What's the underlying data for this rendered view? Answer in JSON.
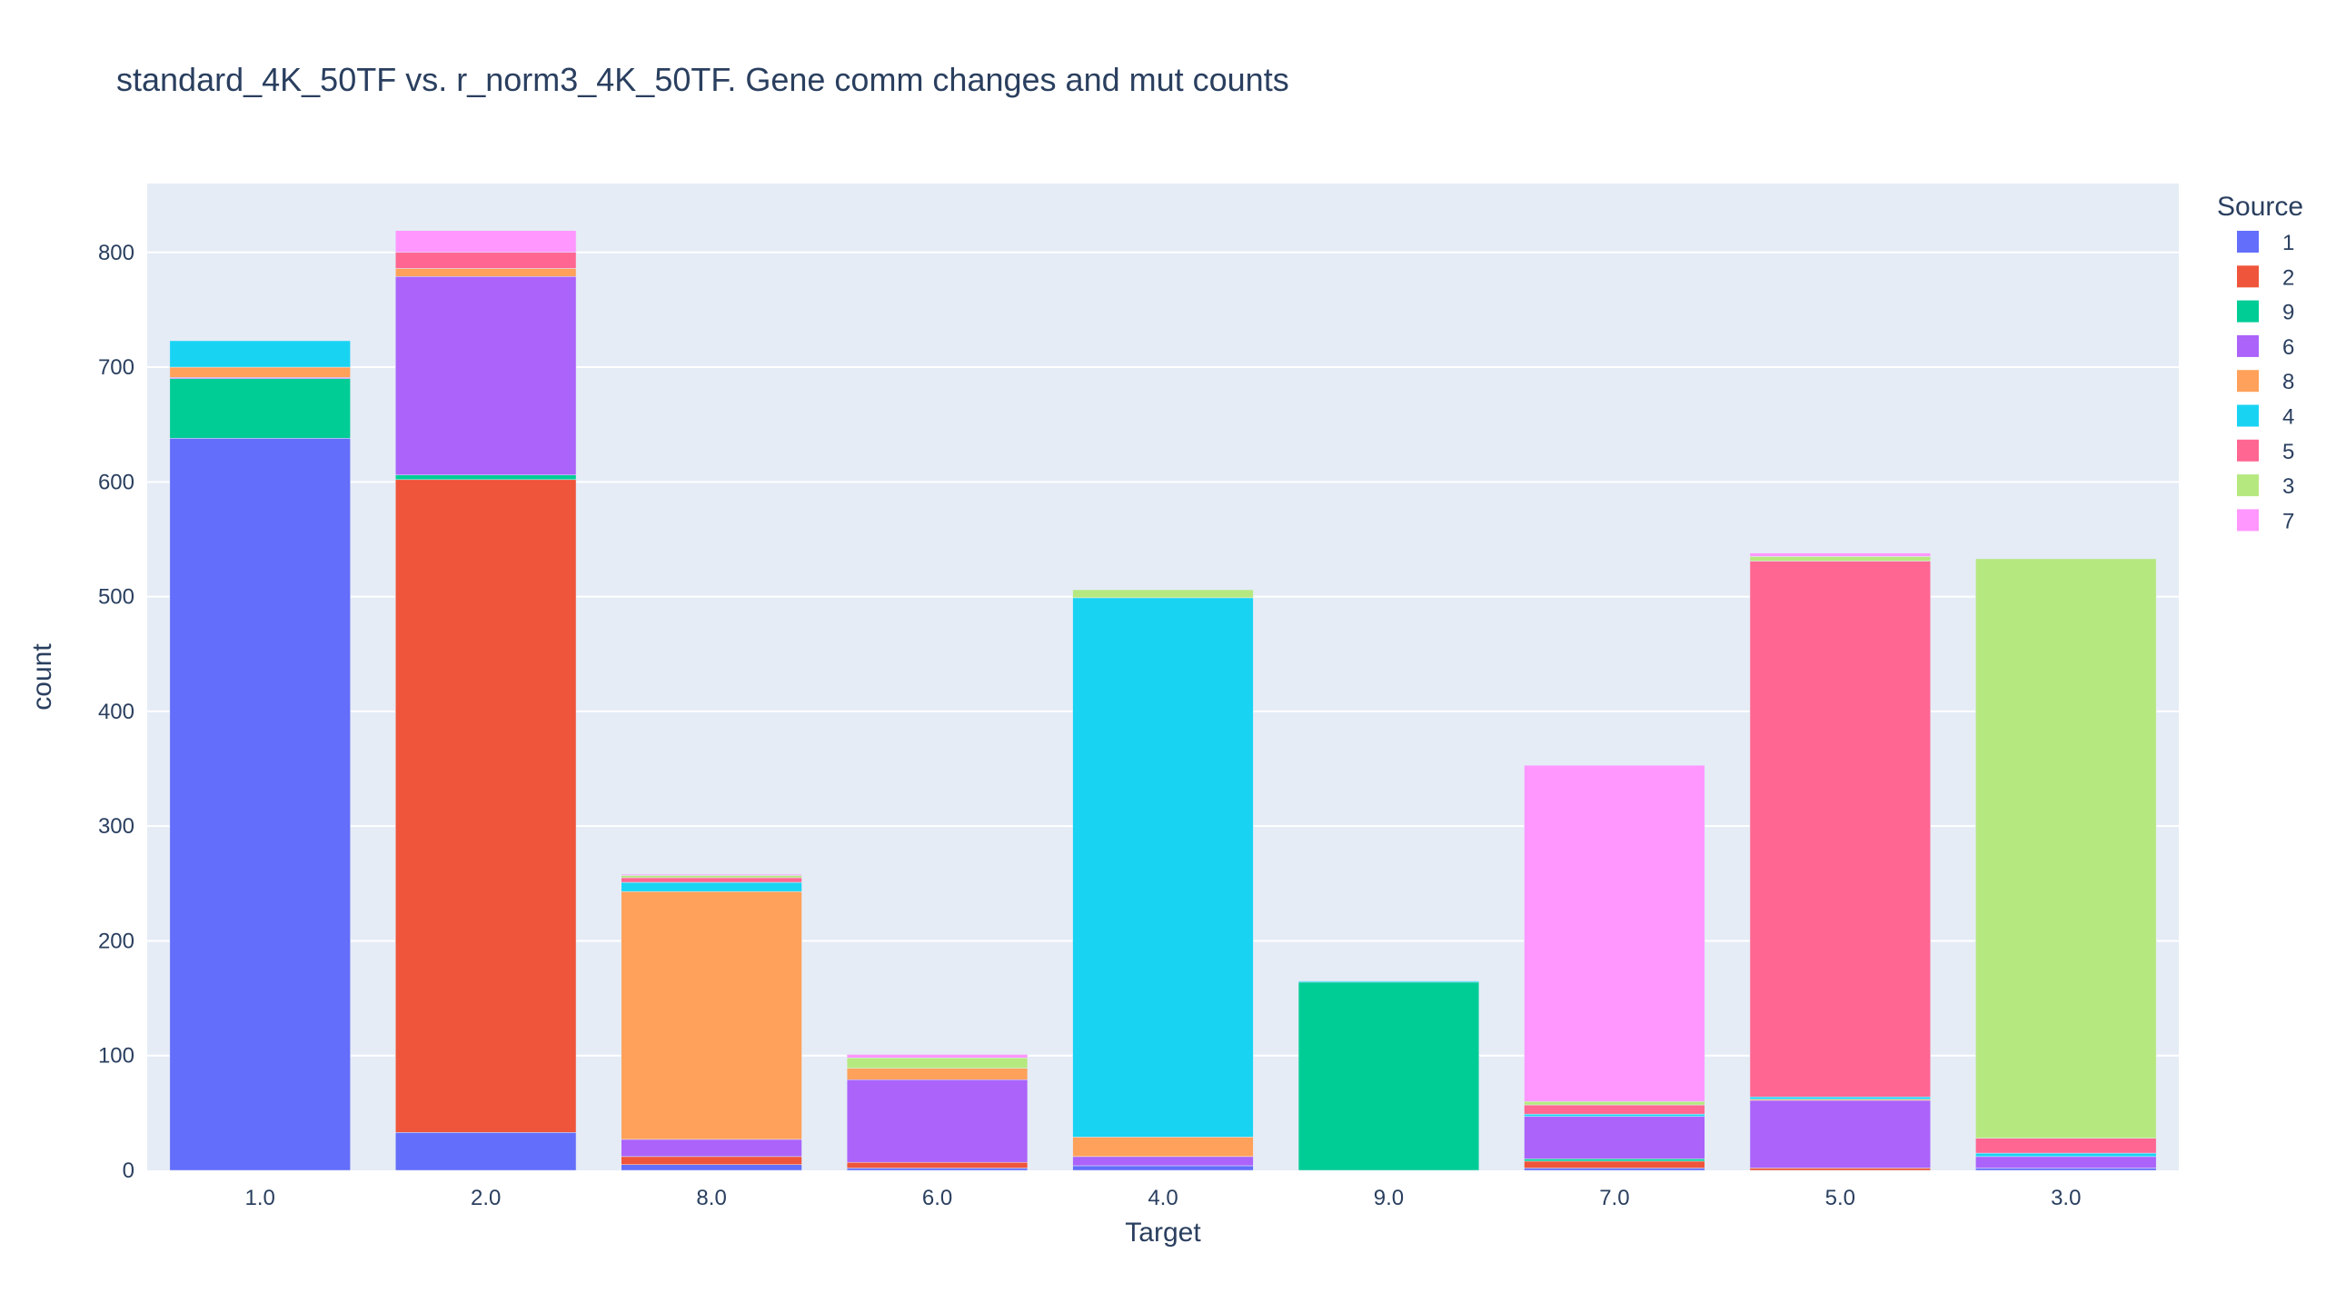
{
  "chart_data": {
    "type": "bar",
    "barmode": "stack",
    "title": "standard_4K_50TF vs. r_norm3_4K_50TF. Gene comm changes and mut counts",
    "xlabel": "Target",
    "ylabel": "count",
    "ylim": [
      0,
      860
    ],
    "y_ticks": [
      0,
      100,
      200,
      300,
      400,
      500,
      600,
      700,
      800
    ],
    "grid": true,
    "legend_title": "Source",
    "legend_position": "top-right",
    "categories": [
      "1.0",
      "2.0",
      "8.0",
      "6.0",
      "4.0",
      "9.0",
      "7.0",
      "5.0",
      "3.0"
    ],
    "series": [
      {
        "name": "1",
        "color": "#636efa",
        "values": [
          638,
          33,
          5,
          2,
          4,
          0,
          2,
          0,
          2
        ]
      },
      {
        "name": "2",
        "color": "#ef553b",
        "values": [
          0,
          569,
          7,
          5,
          0,
          0,
          6,
          2,
          0
        ]
      },
      {
        "name": "9",
        "color": "#00cc96",
        "values": [
          52,
          4,
          0,
          0,
          0,
          164,
          2,
          0,
          0
        ]
      },
      {
        "name": "6",
        "color": "#ab63fa",
        "values": [
          1,
          173,
          15,
          72,
          8,
          0,
          37,
          59,
          10
        ]
      },
      {
        "name": "8",
        "color": "#ffa15a",
        "values": [
          9,
          7,
          216,
          10,
          17,
          0,
          0,
          1,
          0
        ]
      },
      {
        "name": "4",
        "color": "#19d3f3",
        "values": [
          23,
          0,
          8,
          0,
          470,
          1,
          2,
          2,
          3
        ]
      },
      {
        "name": "5",
        "color": "#ff6692",
        "values": [
          0,
          14,
          4,
          0,
          0,
          0,
          8,
          467,
          13
        ]
      },
      {
        "name": "3",
        "color": "#b6e880",
        "values": [
          0,
          0,
          2,
          9,
          7,
          0,
          3,
          4,
          505
        ]
      },
      {
        "name": "7",
        "color": "#ff97ff",
        "values": [
          0,
          19,
          1,
          3,
          0,
          0,
          293,
          3,
          0
        ]
      }
    ]
  }
}
